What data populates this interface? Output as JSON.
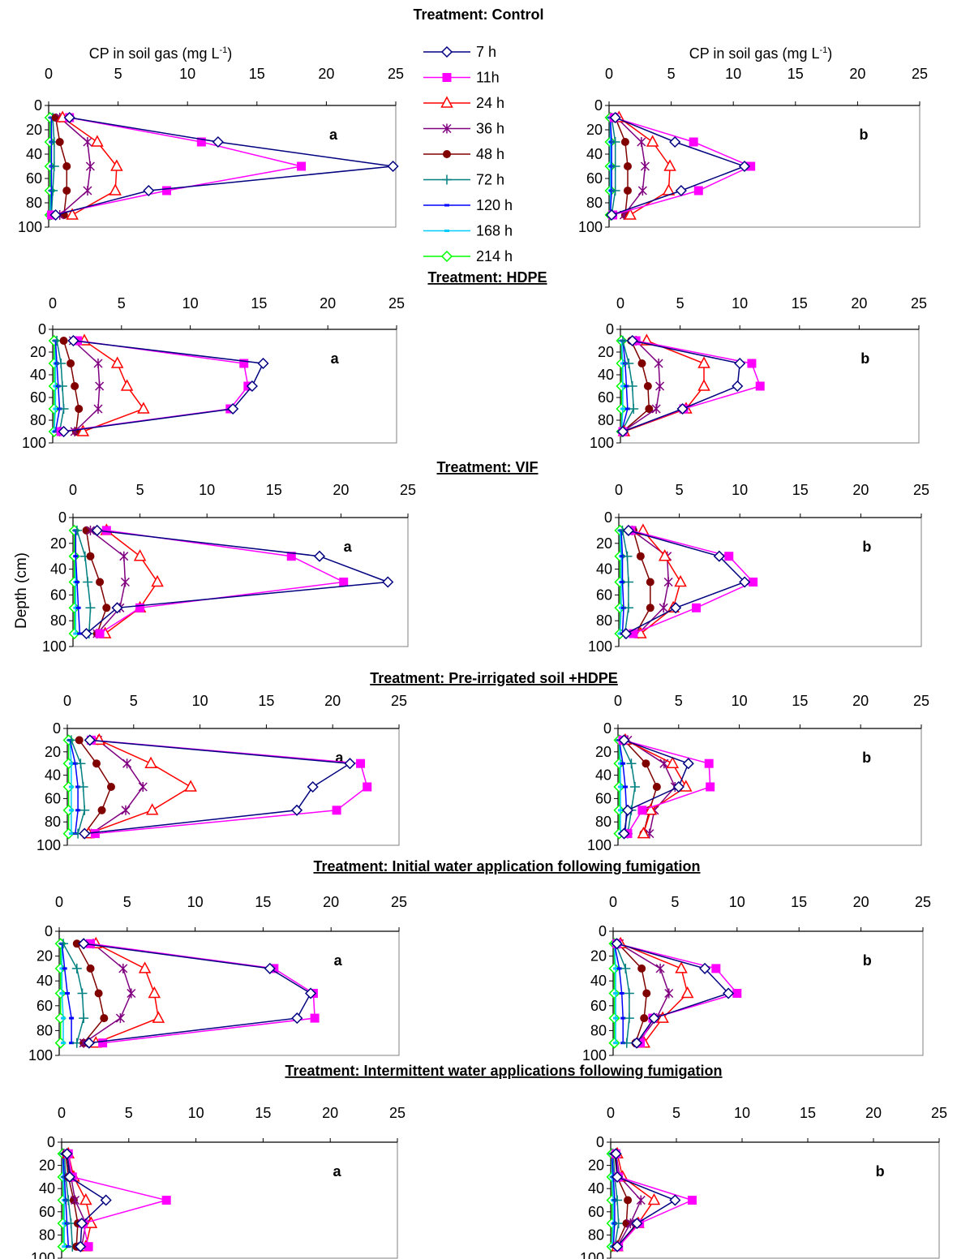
{
  "headings": [
    "Treatment: Control",
    "Treatment: HDPE",
    "Treatment: VIF",
    "Treatment: Pre-irrigated soil +HDPE",
    "Treatment: Initial water application following fumigation",
    "Treatment: Intermittent  water applications following fumigation"
  ],
  "x_axis_title": "CP in soil gas (mg L",
  "x_axis_title_sup": "-1",
  "x_axis_title_end": ")",
  "y_axis_title": "Depth (cm)",
  "x_ticks": [
    "0",
    "5",
    "10",
    "15",
    "20",
    "25"
  ],
  "y_ticks": [
    "0",
    "20",
    "40",
    "60",
    "80",
    "100"
  ],
  "panel_letters": {
    "left": "a",
    "right": "b"
  },
  "legend": [
    {
      "name": "7 h",
      "color": "#000080",
      "marker": "diamond-open"
    },
    {
      "name": "11h",
      "color": "#ff00ff",
      "marker": "square-filled"
    },
    {
      "name": "24 h",
      "color": "#ff0000",
      "marker": "triangle-open"
    },
    {
      "name": "36 h",
      "color": "#800080",
      "marker": "asterisk"
    },
    {
      "name": "48 h",
      "color": "#800000",
      "marker": "circle-filled"
    },
    {
      "name": "72 h",
      "color": "#008080",
      "marker": "plus"
    },
    {
      "name": "120 h",
      "color": "#0000ff",
      "marker": "dash"
    },
    {
      "name": "168 h",
      "color": "#00ccff",
      "marker": "dash"
    },
    {
      "name": "214 h",
      "color": "#00ff00",
      "marker": "diamond-open"
    }
  ],
  "chart_data": {
    "type": "line",
    "depths": [
      10,
      30,
      50,
      70,
      90
    ],
    "xlim": [
      0,
      25
    ],
    "ylim": [
      100,
      0
    ],
    "panels": [
      {
        "row": 0,
        "side": "a",
        "series": [
          [
            1.5,
            12.2,
            24.8,
            7.2,
            0.5
          ],
          [
            1.5,
            11.0,
            18.2,
            8.5,
            0.2
          ],
          [
            1.0,
            3.5,
            4.9,
            4.8,
            1.7
          ],
          [
            0.8,
            2.8,
            3.0,
            2.8,
            0.8
          ],
          [
            0.5,
            0.8,
            1.3,
            1.3,
            1.1
          ],
          [
            0.3,
            0.4,
            0.4,
            0.3,
            0.2
          ],
          [
            0.2,
            0.2,
            0.2,
            0.2,
            0.2
          ],
          [
            0.2,
            0.2,
            0.2,
            0.2,
            0.1
          ],
          [
            0.1,
            0.1,
            0.1,
            0.1,
            0.1
          ]
        ]
      },
      {
        "row": 0,
        "side": "b",
        "series": [
          [
            0.5,
            5.3,
            10.9,
            5.8,
            0.2
          ],
          [
            0.4,
            6.8,
            11.4,
            7.2,
            0.3
          ],
          [
            0.8,
            3.5,
            4.9,
            4.8,
            1.7
          ],
          [
            0.6,
            2.6,
            2.9,
            2.7,
            1.2
          ],
          [
            0.5,
            1.3,
            1.5,
            1.5,
            1.3
          ],
          [
            0.2,
            0.5,
            0.5,
            0.5,
            0.2
          ],
          [
            0.1,
            0.2,
            0.2,
            0.2,
            0.1
          ],
          [
            0.1,
            0.1,
            0.1,
            0.1,
            0.1
          ],
          [
            0.1,
            0.1,
            0.1,
            0.1,
            0.1
          ]
        ]
      },
      {
        "row": 1,
        "side": "a",
        "series": [
          [
            1.5,
            15.3,
            14.5,
            13.1,
            0.8
          ],
          [
            1.8,
            13.9,
            14.2,
            12.9,
            0.6
          ],
          [
            2.3,
            4.7,
            5.4,
            6.6,
            2.2
          ],
          [
            1.5,
            3.3,
            3.4,
            3.3,
            1.6
          ],
          [
            0.8,
            1.3,
            1.6,
            1.9,
            1.7
          ],
          [
            0.3,
            0.6,
            0.7,
            0.8,
            0.5
          ],
          [
            0.2,
            0.3,
            0.4,
            0.5,
            0.2
          ],
          [
            0.2,
            0.2,
            0.2,
            0.2,
            0.1
          ],
          [
            0.1,
            0.1,
            0.1,
            0.1,
            0.1
          ]
        ]
      },
      {
        "row": 1,
        "side": "b",
        "series": [
          [
            1.0,
            10.0,
            9.8,
            5.2,
            0.2
          ],
          [
            1.3,
            11.0,
            11.7,
            5.3,
            0.2
          ],
          [
            2.2,
            7.0,
            7.0,
            5.5,
            0.3
          ],
          [
            1.3,
            3.2,
            3.3,
            3.0,
            0.2
          ],
          [
            0.9,
            1.8,
            2.3,
            2.4,
            0.2
          ],
          [
            0.2,
            0.7,
            1.0,
            1.1,
            0.1
          ],
          [
            0.2,
            0.4,
            0.5,
            0.6,
            0.1
          ],
          [
            0.1,
            0.2,
            0.2,
            0.2,
            0.1
          ],
          [
            0.1,
            0.1,
            0.1,
            0.1,
            0.1
          ]
        ]
      },
      {
        "row": 2,
        "side": "a",
        "series": [
          [
            1.8,
            18.4,
            23.5,
            3.3,
            1.0
          ],
          [
            2.5,
            16.3,
            20.2,
            5.0,
            2.0
          ],
          [
            2.5,
            5.0,
            6.3,
            5.0,
            2.4
          ],
          [
            1.3,
            3.8,
            3.9,
            3.5,
            1.8
          ],
          [
            1.0,
            1.3,
            2.0,
            2.5,
            1.8
          ],
          [
            0.3,
            0.9,
            1.1,
            1.3,
            1.2
          ],
          [
            0.2,
            0.2,
            0.3,
            0.4,
            0.5
          ],
          [
            0.2,
            0.2,
            0.2,
            0.2,
            0.2
          ],
          [
            0.1,
            0.1,
            0.1,
            0.1,
            0.1
          ]
        ]
      },
      {
        "row": 2,
        "side": "b",
        "series": [
          [
            0.8,
            8.3,
            10.4,
            4.7,
            0.6
          ],
          [
            1.0,
            9.1,
            11.1,
            6.4,
            1.2
          ],
          [
            2.0,
            3.8,
            5.1,
            4.5,
            1.8
          ],
          [
            1.1,
            4.0,
            4.1,
            3.7,
            1.6
          ],
          [
            1.2,
            1.8,
            2.6,
            2.6,
            1.4
          ],
          [
            0.3,
            0.7,
            0.8,
            0.8,
            0.5
          ],
          [
            0.2,
            0.3,
            0.3,
            0.4,
            0.3
          ],
          [
            0.1,
            0.2,
            0.2,
            0.2,
            0.1
          ],
          [
            0.1,
            0.1,
            0.1,
            0.1,
            0.1
          ]
        ]
      },
      {
        "row": 3,
        "side": "a",
        "series": [
          [
            1.7,
            21.3,
            18.5,
            17.3,
            1.3
          ],
          [
            1.8,
            22.1,
            22.6,
            20.3,
            2.1
          ],
          [
            2.4,
            6.3,
            9.3,
            6.4,
            1.6
          ],
          [
            2.3,
            4.5,
            5.7,
            4.4,
            1.8
          ],
          [
            0.9,
            2.2,
            3.3,
            2.6,
            1.3
          ],
          [
            0.3,
            1.0,
            1.2,
            1.3,
            0.8
          ],
          [
            0.2,
            0.6,
            0.8,
            0.8,
            0.6
          ],
          [
            0.2,
            0.3,
            0.3,
            0.3,
            0.3
          ],
          [
            0.1,
            0.1,
            0.1,
            0.1,
            0.1
          ]
        ]
      },
      {
        "row": 3,
        "side": "b",
        "series": [
          [
            0.5,
            5.8,
            5.0,
            0.8,
            0.5
          ],
          [
            0.4,
            7.5,
            7.6,
            2.0,
            0.8
          ],
          [
            0.6,
            4.5,
            5.6,
            2.7,
            2.1
          ],
          [
            0.8,
            3.8,
            4.7,
            3.0,
            2.6
          ],
          [
            0.5,
            2.3,
            3.2,
            2.6,
            2.1
          ],
          [
            0.2,
            1.1,
            1.4,
            1.1,
            0.8
          ],
          [
            0.1,
            0.4,
            0.6,
            0.7,
            0.6
          ],
          [
            0.1,
            0.2,
            0.2,
            0.2,
            0.2
          ],
          [
            0.1,
            0.1,
            0.1,
            0.1,
            0.1
          ]
        ]
      },
      {
        "row": 4,
        "side": "a",
        "series": [
          [
            1.8,
            15.5,
            18.5,
            17.5,
            2.2
          ],
          [
            2.3,
            15.8,
            18.7,
            18.8,
            3.2
          ],
          [
            2.7,
            6.3,
            7.0,
            7.3,
            2.7
          ],
          [
            2.5,
            4.7,
            5.3,
            4.5,
            1.8
          ],
          [
            1.3,
            2.3,
            2.9,
            3.3,
            1.8
          ],
          [
            0.3,
            1.3,
            1.7,
            1.8,
            1.3
          ],
          [
            0.2,
            0.4,
            0.6,
            0.9,
            0.9
          ],
          [
            0.2,
            0.2,
            0.2,
            0.3,
            0.3
          ],
          [
            0.1,
            0.1,
            0.1,
            0.1,
            0.1
          ]
        ]
      },
      {
        "row": 4,
        "side": "b",
        "series": [
          [
            0.3,
            7.4,
            9.3,
            3.3,
            1.9
          ],
          [
            0.3,
            8.3,
            10.0,
            3.2,
            2.2
          ],
          [
            0.6,
            5.5,
            6.0,
            4.0,
            2.5
          ],
          [
            0.5,
            3.8,
            4.5,
            3.5,
            2.0
          ],
          [
            0.4,
            2.3,
            2.7,
            2.5,
            1.8
          ],
          [
            0.2,
            1.0,
            1.3,
            1.3,
            1.1
          ],
          [
            0.1,
            0.5,
            0.7,
            0.8,
            0.8
          ],
          [
            0.1,
            0.2,
            0.2,
            0.2,
            0.2
          ],
          [
            0.1,
            0.1,
            0.1,
            0.1,
            0.1
          ]
        ]
      },
      {
        "row": 5,
        "side": "a",
        "series": [
          [
            0.4,
            0.6,
            3.3,
            1.5,
            1.4
          ],
          [
            0.5,
            0.8,
            7.8,
            1.6,
            2.0
          ],
          [
            0.5,
            0.9,
            1.8,
            2.2,
            1.8
          ],
          [
            0.4,
            0.7,
            1.0,
            1.8,
            1.5
          ],
          [
            0.3,
            0.5,
            0.9,
            1.2,
            1.1
          ],
          [
            0.2,
            0.3,
            0.5,
            0.7,
            0.8
          ],
          [
            0.1,
            0.2,
            0.3,
            0.4,
            0.5
          ],
          [
            0.1,
            0.1,
            0.2,
            0.2,
            0.2
          ],
          [
            0.1,
            0.1,
            0.1,
            0.1,
            0.1
          ]
        ]
      },
      {
        "row": 5,
        "side": "b",
        "series": [
          [
            0.4,
            0.5,
            4.9,
            2.0,
            0.5
          ],
          [
            0.4,
            0.6,
            6.2,
            2.2,
            0.6
          ],
          [
            0.5,
            0.9,
            3.3,
            2.1,
            0.5
          ],
          [
            0.4,
            0.7,
            2.3,
            1.5,
            0.5
          ],
          [
            0.3,
            0.5,
            1.3,
            1.2,
            0.4
          ],
          [
            0.2,
            0.3,
            0.5,
            0.6,
            0.3
          ],
          [
            0.1,
            0.2,
            0.3,
            0.3,
            0.2
          ],
          [
            0.1,
            0.1,
            0.2,
            0.2,
            0.1
          ],
          [
            0.1,
            0.1,
            0.1,
            0.1,
            0.1
          ]
        ]
      }
    ]
  }
}
